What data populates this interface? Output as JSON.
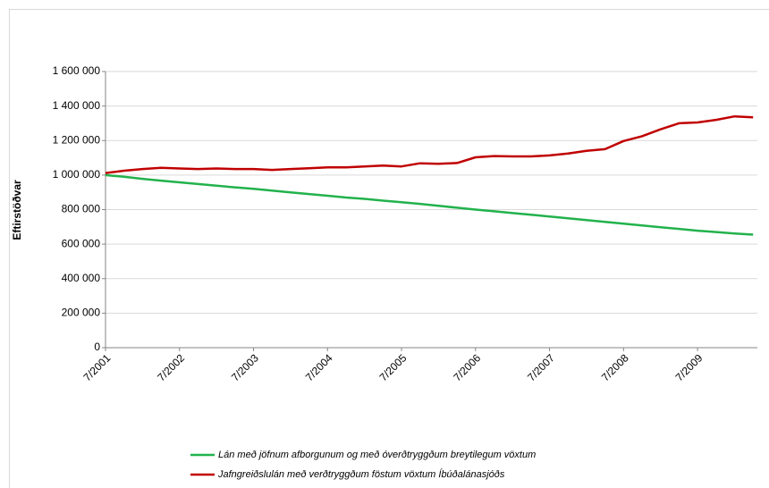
{
  "chart_data": {
    "type": "line",
    "y_label": "Eftirstöðvar",
    "categories": [
      "7/2001",
      null,
      null,
      null,
      "7/2002",
      null,
      null,
      null,
      "7/2003",
      null,
      null,
      null,
      "7/2004",
      null,
      null,
      null,
      "7/2005",
      null,
      null,
      null,
      "7/2006",
      null,
      null,
      null,
      "7/2007",
      null,
      null,
      null,
      "7/2008",
      null,
      null,
      null,
      "7/2009",
      null,
      null,
      null
    ],
    "series": [
      {
        "name": "Lán með jöfnum afborgunum og með óverðtryggðum  breytilegum vöxtum",
        "color": "#22b24c",
        "values": [
          1000000,
          990000,
          978000,
          968000,
          958000,
          948000,
          938000,
          929000,
          920000,
          910000,
          900000,
          890000,
          880000,
          870000,
          862000,
          852000,
          843000,
          833000,
          822000,
          811000,
          800000,
          790000,
          780000,
          770000,
          760000,
          750000,
          739000,
          729000,
          718000,
          708000,
          698000,
          688000,
          678000,
          670000,
          662000,
          655000
        ]
      },
      {
        "name": "Jafngreiðslulán með  verðtryggðum föstum vöxtum Íbúðalánasjóðs",
        "color": "#c00000",
        "values": [
          1012000,
          1025000,
          1035000,
          1042000,
          1038000,
          1035000,
          1038000,
          1035000,
          1035000,
          1030000,
          1035000,
          1040000,
          1045000,
          1045000,
          1050000,
          1055000,
          1050000,
          1068000,
          1065000,
          1070000,
          1103000,
          1110000,
          1108000,
          1108000,
          1114000,
          1125000,
          1140000,
          1150000,
          1197000,
          1225000,
          1265000,
          1300000,
          1305000,
          1320000,
          1340000,
          1335000
        ]
      }
    ],
    "ylim": [
      0,
      1600000
    ],
    "yticks": [
      0,
      {
        "value": 200000,
        "label": "200 000"
      },
      {
        "value": 400000,
        "label": "400 000"
      },
      {
        "value": 600000,
        "label": "600 000"
      },
      {
        "value": 800000,
        "label": "800 000"
      },
      {
        "value": 1000000,
        "label": "1 000 000"
      },
      {
        "value": 1200000,
        "label": "1 200 000"
      },
      {
        "value": 1400000,
        "label": "1 400 000"
      },
      {
        "value": 1600000,
        "label": "1 600 000"
      }
    ],
    "grid": true,
    "legend": "bottom"
  }
}
